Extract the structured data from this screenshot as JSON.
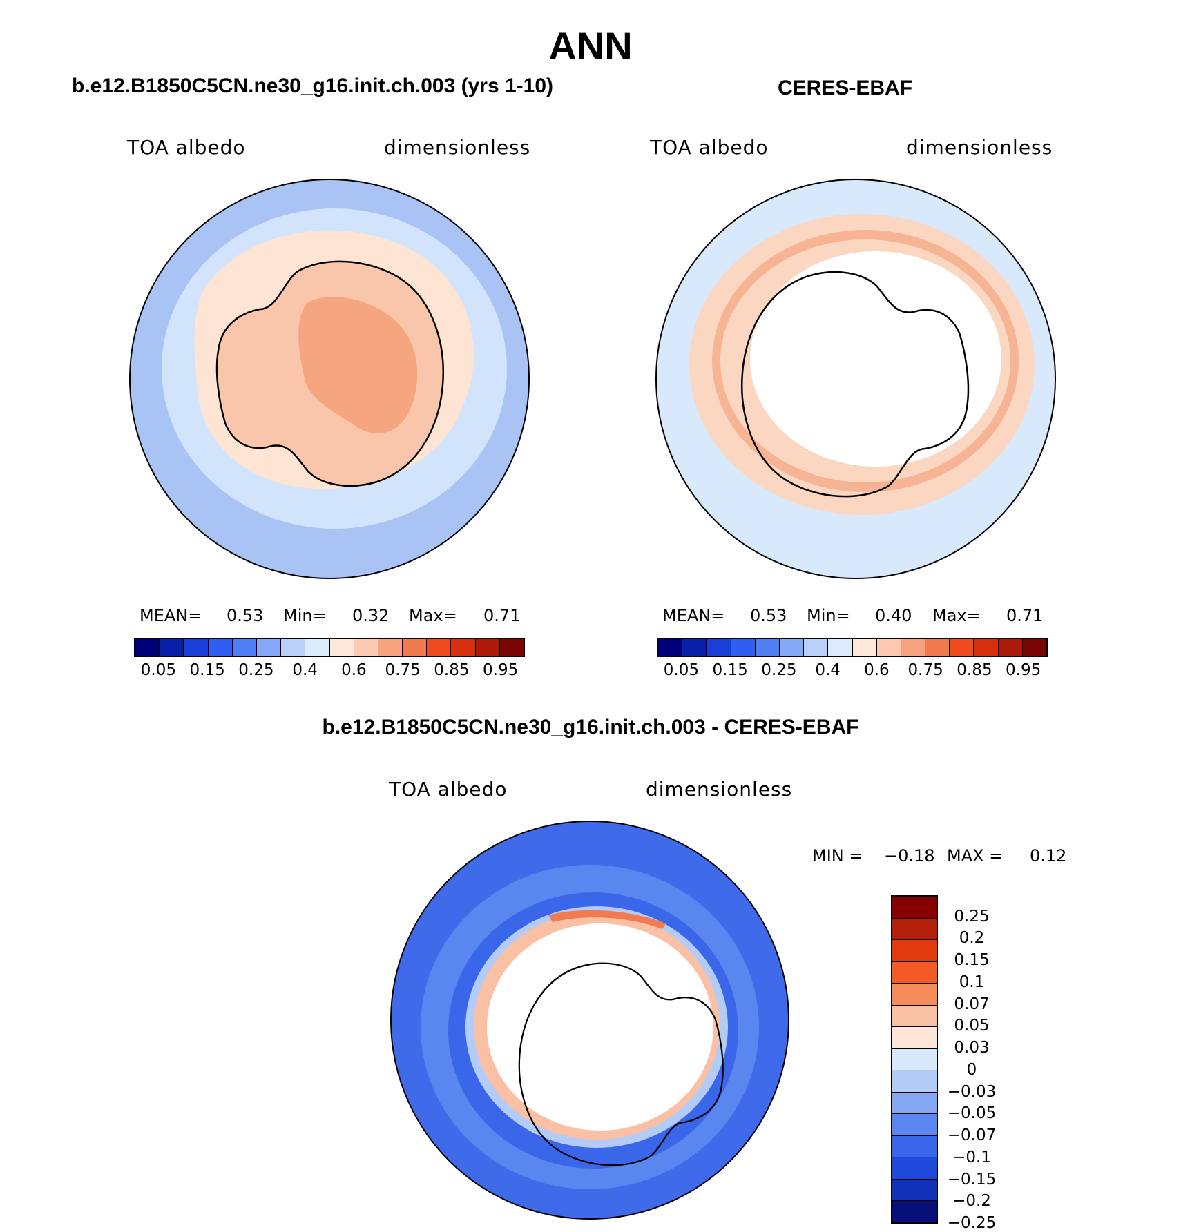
{
  "title": "ANN",
  "panels": {
    "model": {
      "title": "b.e12.B1850C5CN.ne30_g16.init.ch.003 (yrs 1-10)",
      "left_label": "TOA albedo",
      "right_label": "dimensionless",
      "stats": {
        "mean_label": "MEAN=",
        "mean": "0.53",
        "min_label": "Min=",
        "min": "0.32",
        "max_label": "Max=",
        "max": "0.71"
      }
    },
    "obs": {
      "title": "CERES-EBAF",
      "left_label": "TOA albedo",
      "right_label": "dimensionless",
      "stats": {
        "mean_label": "MEAN=",
        "mean": "0.53",
        "min_label": "Min=",
        "min": "0.40",
        "max_label": "Max=",
        "max": "0.71"
      }
    },
    "diff": {
      "title": "b.e12.B1850C5CN.ne30_g16.init.ch.003 - CERES-EBAF",
      "left_label": "TOA albedo",
      "right_label": "dimensionless",
      "min_label": "MIN =",
      "min": "−0.18",
      "max_label": "MAX =",
      "max": "0.12"
    }
  },
  "chart_data": [
    {
      "type": "heatmap",
      "projection": "south-polar-stereographic",
      "name": "model",
      "title": "b.e12.B1850C5CN.ne30_g16.init.ch.003 (yrs 1-10)",
      "variable": "TOA albedo",
      "units": "dimensionless",
      "mean": 0.53,
      "min": 0.32,
      "max": 0.71,
      "colorbar_ticks": [
        "0.05",
        "0.15",
        "0.25",
        "0.4",
        "0.6",
        "0.75",
        "0.85",
        "0.95"
      ]
    },
    {
      "type": "heatmap",
      "projection": "south-polar-stereographic",
      "name": "obs",
      "title": "CERES-EBAF",
      "variable": "TOA albedo",
      "units": "dimensionless",
      "mean": 0.53,
      "min": 0.4,
      "max": 0.71,
      "colorbar_ticks": [
        "0.05",
        "0.15",
        "0.25",
        "0.4",
        "0.6",
        "0.75",
        "0.85",
        "0.95"
      ]
    },
    {
      "type": "heatmap",
      "projection": "south-polar-stereographic",
      "name": "difference",
      "title": "b.e12.B1850C5CN.ne30_g16.init.ch.003 - CERES-EBAF",
      "variable": "TOA albedo",
      "units": "dimensionless",
      "min": -0.18,
      "max": 0.12,
      "colorbar_ticks": [
        "0.25",
        "0.2",
        "0.15",
        "0.1",
        "0.07",
        "0.05",
        "0.03",
        "0",
        "−0.03",
        "−0.05",
        "−0.07",
        "−0.1",
        "−0.15",
        "−0.2",
        "−0.25"
      ]
    }
  ],
  "colors": {
    "abs_scale": [
      "#00007a",
      "#0a1fa8",
      "#1a3fd6",
      "#2f5ef0",
      "#4f7ef5",
      "#86a9f7",
      "#b9d0fa",
      "#dcebfd",
      "#fde8da",
      "#fccab2",
      "#f8a37f",
      "#f27a4f",
      "#ee4b1f",
      "#d7300f",
      "#ad1a0a",
      "#7a0505"
    ],
    "diff_scale": [
      "#860000",
      "#b41f0a",
      "#e2390e",
      "#f45a26",
      "#f58a5a",
      "#f9c0a3",
      "#fde6d8",
      "#d9e9fc",
      "#b2cbf7",
      "#86a8f4",
      "#5a86ef",
      "#3a66ea",
      "#1f48dd",
      "#1131b8",
      "#060f7a"
    ],
    "ocean_model_outer": "#a9c3f4",
    "ocean_model_mid": "#d2e4fb",
    "ice_model": "#fde4d3",
    "antarctica_model": "#f9c6ab",
    "antarctica_model_high": "#f5a67f",
    "obs_outer": "#d9e9fc",
    "obs_ring": "#fbd6c1",
    "obs_ring_strong": "#f7b494",
    "diff_outer": "#3f6bea",
    "diff_inner": "#5a86ef",
    "diff_ring_light": "#b2cbf7",
    "diff_ring_pos": "#f9c0a3",
    "diff_ring_strong": "#f27a4f"
  }
}
